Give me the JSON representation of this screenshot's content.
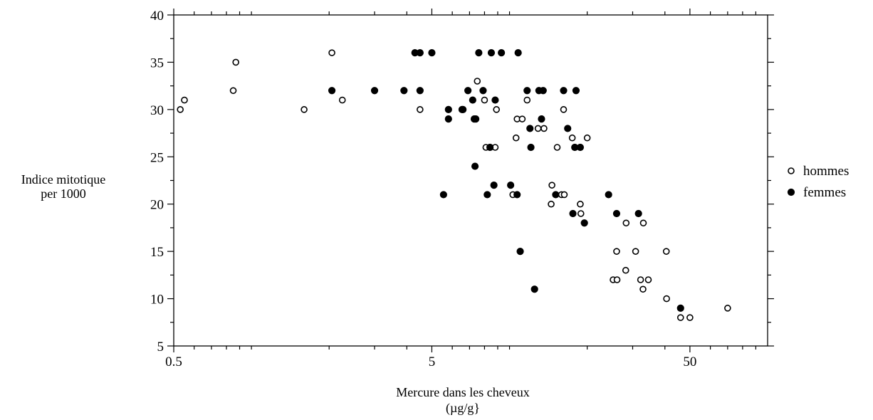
{
  "chart_data": {
    "type": "scatter",
    "title": "",
    "xlabel": [
      "Mercure dans les cheveux",
      "(µg/g}"
    ],
    "ylabel": [
      "Indice mitotique",
      "per 1000"
    ],
    "xscale": "log",
    "xlim": [
      0.5,
      100
    ],
    "ylim": [
      5,
      40
    ],
    "xticks": [
      0.5,
      5,
      50
    ],
    "xtick_labels": [
      "0.5",
      "5",
      "50"
    ],
    "yticks": [
      5,
      10,
      15,
      20,
      25,
      30,
      35,
      40
    ],
    "ytick_labels": [
      "5",
      "10",
      "15",
      "20",
      "25",
      "30",
      "35",
      "40"
    ],
    "grid": false,
    "legend_position": "right",
    "series": [
      {
        "name": "hommes",
        "marker": "open-circle",
        "color": "#000000",
        "points": [
          [
            0.53,
            30
          ],
          [
            0.55,
            31
          ],
          [
            0.85,
            32
          ],
          [
            0.87,
            35
          ],
          [
            1.6,
            30
          ],
          [
            2.05,
            36
          ],
          [
            2.25,
            31
          ],
          [
            4.5,
            30
          ],
          [
            7.5,
            33
          ],
          [
            8.0,
            31
          ],
          [
            8.1,
            26
          ],
          [
            8.8,
            26
          ],
          [
            8.9,
            30
          ],
          [
            10.3,
            21
          ],
          [
            10.6,
            27
          ],
          [
            10.7,
            29
          ],
          [
            11.2,
            29
          ],
          [
            11.7,
            31
          ],
          [
            12.0,
            28
          ],
          [
            12.9,
            28
          ],
          [
            13.6,
            28
          ],
          [
            14.5,
            20
          ],
          [
            14.6,
            22
          ],
          [
            15.3,
            26
          ],
          [
            15.9,
            21
          ],
          [
            16.2,
            30
          ],
          [
            16.3,
            21
          ],
          [
            17.5,
            27
          ],
          [
            18.8,
            20
          ],
          [
            18.9,
            19
          ],
          [
            20.0,
            27
          ],
          [
            25.2,
            12
          ],
          [
            26.0,
            15
          ],
          [
            26.1,
            12
          ],
          [
            28.2,
            13
          ],
          [
            28.3,
            18
          ],
          [
            30.8,
            15
          ],
          [
            32.2,
            12
          ],
          [
            32.9,
            11
          ],
          [
            33.0,
            18
          ],
          [
            34.5,
            12
          ],
          [
            40.5,
            15
          ],
          [
            40.6,
            10
          ],
          [
            46.0,
            8
          ],
          [
            50.0,
            8
          ],
          [
            70.0,
            9
          ]
        ]
      },
      {
        "name": "femmes",
        "marker": "filled-circle",
        "color": "#000000",
        "points": [
          [
            2.05,
            32
          ],
          [
            3.0,
            32
          ],
          [
            3.9,
            32
          ],
          [
            4.3,
            36
          ],
          [
            4.5,
            32
          ],
          [
            4.5,
            36
          ],
          [
            5.0,
            36
          ],
          [
            5.55,
            21
          ],
          [
            5.8,
            30
          ],
          [
            5.8,
            29
          ],
          [
            6.55,
            30
          ],
          [
            6.6,
            30
          ],
          [
            6.9,
            32
          ],
          [
            7.2,
            31
          ],
          [
            7.3,
            29
          ],
          [
            7.35,
            24
          ],
          [
            7.4,
            29
          ],
          [
            7.6,
            36
          ],
          [
            7.9,
            32
          ],
          [
            8.2,
            21
          ],
          [
            8.4,
            26
          ],
          [
            8.5,
            36
          ],
          [
            8.7,
            22
          ],
          [
            8.8,
            31
          ],
          [
            9.3,
            36
          ],
          [
            10.1,
            22
          ],
          [
            10.7,
            21
          ],
          [
            10.8,
            36
          ],
          [
            11.0,
            15
          ],
          [
            11.7,
            32
          ],
          [
            12.0,
            28
          ],
          [
            12.1,
            26
          ],
          [
            12.5,
            11
          ],
          [
            13.0,
            32
          ],
          [
            13.3,
            29
          ],
          [
            13.5,
            32
          ],
          [
            15.1,
            21
          ],
          [
            16.2,
            32
          ],
          [
            16.8,
            28
          ],
          [
            17.6,
            19
          ],
          [
            17.9,
            26
          ],
          [
            18.1,
            32
          ],
          [
            18.8,
            26
          ],
          [
            19.5,
            18
          ],
          [
            24.2,
            21
          ],
          [
            26.0,
            19
          ],
          [
            31.6,
            19
          ],
          [
            46.0,
            9
          ]
        ]
      }
    ]
  }
}
